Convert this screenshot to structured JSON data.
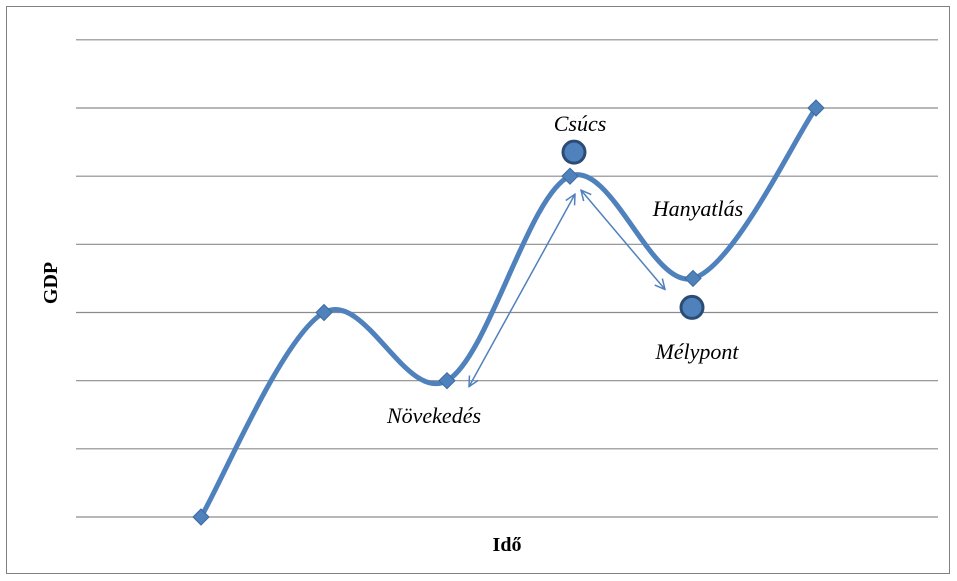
{
  "chart_data": {
    "type": "line",
    "xlabel": "Idő",
    "ylabel": "GDP",
    "x": [
      1,
      2,
      3,
      4,
      5,
      6
    ],
    "series": [
      {
        "values": [
          0,
          3,
          2,
          5,
          3.5,
          6
        ],
        "color": "#4f81bd",
        "smooth": true,
        "marker": "diamond"
      }
    ],
    "ylim": [
      0,
      6
    ],
    "gridlines": "horizontal",
    "annotations": [
      {
        "text": "Csúcs",
        "marker": "circle",
        "at": "peak"
      },
      {
        "text": "Hanyatlás",
        "arrow": "peak-to-trough"
      },
      {
        "text": "Mélypont",
        "marker": "circle",
        "at": "trough"
      },
      {
        "text": "Növekedés",
        "arrow": "trough-to-peak"
      }
    ]
  }
}
